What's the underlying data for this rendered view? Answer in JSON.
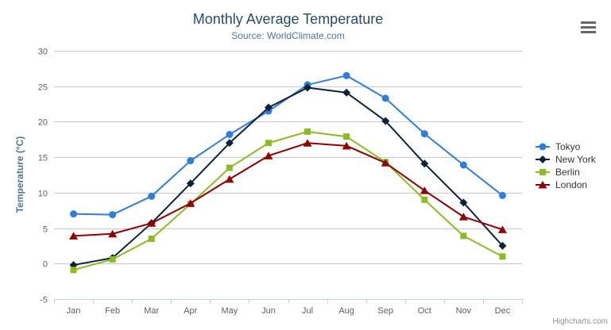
{
  "title": {
    "text": "Monthly Average Temperature"
  },
  "subtitle": {
    "text": "Source: WorldClimate.com"
  },
  "export_menu": {
    "icon": "hamburger-icon"
  },
  "credits": {
    "label": "Highcharts.com"
  },
  "chart_data": {
    "type": "line",
    "title": "Monthly Average Temperature",
    "subtitle": "Source: WorldClimate.com",
    "xlabel": "",
    "ylabel": "Temperature (°C)",
    "ylim": [
      -5,
      30
    ],
    "ytick_step": 5,
    "yticks": [
      -5,
      0,
      5,
      10,
      15,
      20,
      25,
      30
    ],
    "grid": true,
    "legend_position": "right",
    "categories": [
      "Jan",
      "Feb",
      "Mar",
      "Apr",
      "May",
      "Jun",
      "Jul",
      "Aug",
      "Sep",
      "Oct",
      "Nov",
      "Dec"
    ],
    "series": [
      {
        "name": "Tokyo",
        "color": "#2f7ed8",
        "marker": "circle",
        "values": [
          7.0,
          6.9,
          9.5,
          14.5,
          18.2,
          21.5,
          25.2,
          26.5,
          23.3,
          18.3,
          13.9,
          9.6
        ]
      },
      {
        "name": "New York",
        "color": "#0d233a",
        "marker": "diamond",
        "values": [
          -0.2,
          0.8,
          5.7,
          11.3,
          17.0,
          22.0,
          24.8,
          24.1,
          20.1,
          14.1,
          8.6,
          2.5
        ]
      },
      {
        "name": "Berlin",
        "color": "#8bbc21",
        "marker": "square",
        "values": [
          -0.9,
          0.6,
          3.5,
          8.4,
          13.5,
          17.0,
          18.6,
          17.9,
          14.3,
          9.0,
          3.9,
          1.0
        ]
      },
      {
        "name": "London",
        "color": "#910000",
        "marker": "triangle",
        "values": [
          3.9,
          4.2,
          5.7,
          8.5,
          11.9,
          15.2,
          17.0,
          16.6,
          14.2,
          10.3,
          6.6,
          4.8
        ]
      }
    ]
  },
  "style_colors": {
    "title": "#274b6d",
    "subtitle": "#4d759e",
    "axis_labels": "#606060",
    "gridline": "#c8c8c8",
    "axis_line": "#c0d0e0",
    "legend_text": "#333333",
    "credits": "#909090",
    "menu_icon": "#666666"
  }
}
